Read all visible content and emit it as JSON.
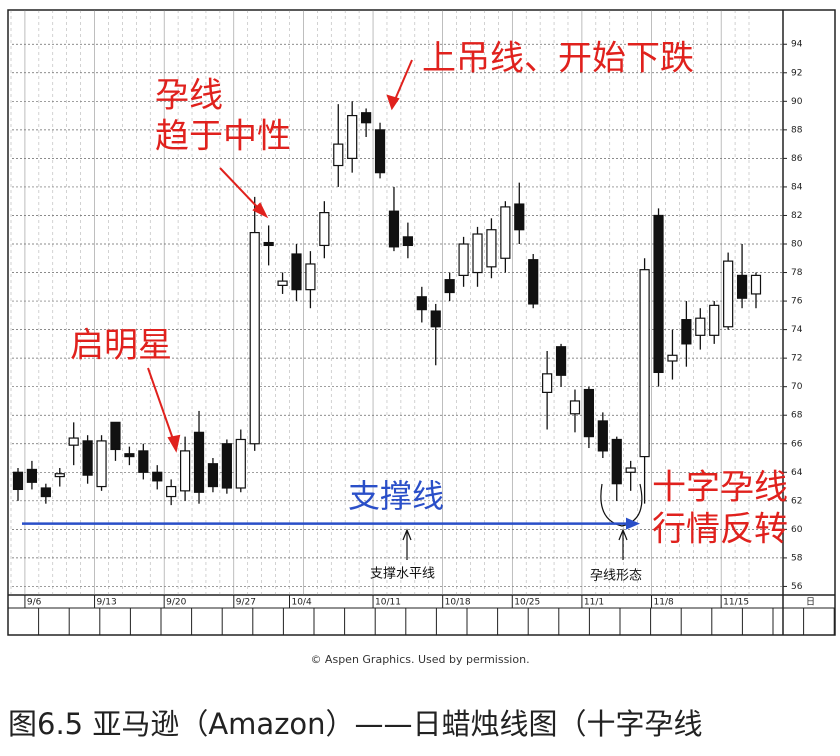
{
  "chart_data": {
    "type": "candlestick",
    "categories": [
      null,
      "9/6",
      null,
      null,
      null,
      null,
      "9/13",
      null,
      null,
      null,
      null,
      "9/20",
      null,
      null,
      null,
      null,
      "9/27",
      null,
      null,
      null,
      "10/4",
      null,
      null,
      null,
      null,
      null,
      "10/11",
      null,
      null,
      null,
      null,
      "10/18",
      null,
      null,
      null,
      null,
      "10/25",
      null,
      null,
      null,
      null,
      "11/1",
      null,
      null,
      null,
      null,
      "11/8",
      null,
      null,
      null,
      null,
      "11/15",
      null,
      null
    ],
    "open": [
      64,
      64.2,
      62.9,
      63.7,
      65.9,
      66.2,
      63,
      67.5,
      65.3,
      65.5,
      64,
      62.3,
      62.7,
      66.8,
      64.6,
      66,
      62.9,
      66,
      80.1,
      77.1,
      79.3,
      76.8,
      79.9,
      85.5,
      86,
      89.2,
      88,
      82.3,
      80.5,
      76.3,
      75.3,
      77.5,
      77.8,
      78,
      78.4,
      79,
      82.8,
      78.9,
      69.6,
      72.8,
      68.1,
      69.8,
      67.6,
      66.3,
      64,
      65.1,
      82,
      71.8,
      74.7,
      73.6,
      73.6,
      74.2,
      77.8,
      76.5
    ],
    "high": [
      64.3,
      64.8,
      63.2,
      64.3,
      67.5,
      66.6,
      66.6,
      67.5,
      65.8,
      66,
      64.5,
      63.5,
      66.5,
      68.3,
      65,
      66.3,
      67,
      83.3,
      81.3,
      78,
      80,
      79.5,
      83,
      89.8,
      90,
      89.5,
      88.5,
      84,
      81.5,
      77,
      75.8,
      78,
      80.5,
      81.2,
      81.8,
      83,
      84.3,
      79.3,
      72.5,
      73,
      69.8,
      70,
      68.2,
      66.5,
      64.8,
      79,
      82.5,
      74,
      76,
      75.5,
      76,
      79.4,
      80,
      78
    ],
    "low": [
      62,
      62.8,
      61.8,
      63,
      64.5,
      63.2,
      62.7,
      64.8,
      64.5,
      63.5,
      62.8,
      61.7,
      62,
      61.8,
      62.6,
      62.5,
      62.6,
      65.5,
      78.5,
      76.5,
      76,
      75.5,
      79,
      84,
      85,
      87.5,
      84.6,
      79.5,
      79,
      74.5,
      71.5,
      76,
      77,
      77,
      77.6,
      78,
      80,
      75.5,
      67,
      70,
      66.8,
      65.7,
      65,
      62,
      62.7,
      61.8,
      70,
      70.5,
      71.4,
      72.6,
      73,
      74,
      75.5,
      75.5
    ],
    "close": [
      62.8,
      63.3,
      62.3,
      63.9,
      66.4,
      63.8,
      66.2,
      65.6,
      65.1,
      64,
      63.4,
      63,
      65.5,
      62.6,
      63,
      62.9,
      66.3,
      80.8,
      79.9,
      77.4,
      76.8,
      78.6,
      82.2,
      87,
      89,
      88.5,
      85,
      79.8,
      79.9,
      75.4,
      74.2,
      76.6,
      80,
      80.7,
      81,
      82.6,
      81,
      75.8,
      70.9,
      70.8,
      69,
      66.5,
      65.5,
      63.2,
      64.3,
      78.2,
      71,
      72.2,
      73,
      74.8,
      75.7,
      78.8,
      76.2,
      77.8
    ],
    "ylim": [
      55.4,
      96.4
    ],
    "yticks": [
      56,
      58,
      60,
      62,
      64,
      66,
      68,
      70,
      72,
      74,
      76,
      78,
      80,
      82,
      84,
      86,
      88,
      90,
      92,
      94
    ],
    "grid": true,
    "support_line": {
      "label": "支撑线",
      "value": 60.4,
      "color": "#2a4fc8"
    },
    "x_unit_label": "日",
    "annotations": [
      "孕线",
      "趋于中性",
      "上吊线、开始下跌",
      "启明星",
      "十字孕线",
      "行情反转",
      "支撑水平线",
      "孕线形态"
    ]
  },
  "credit": "© Aspen Graphics. Used by permission.",
  "caption": "图6.5 亚马逊（Amazon）——日蜡烛线图（十字孕线"
}
